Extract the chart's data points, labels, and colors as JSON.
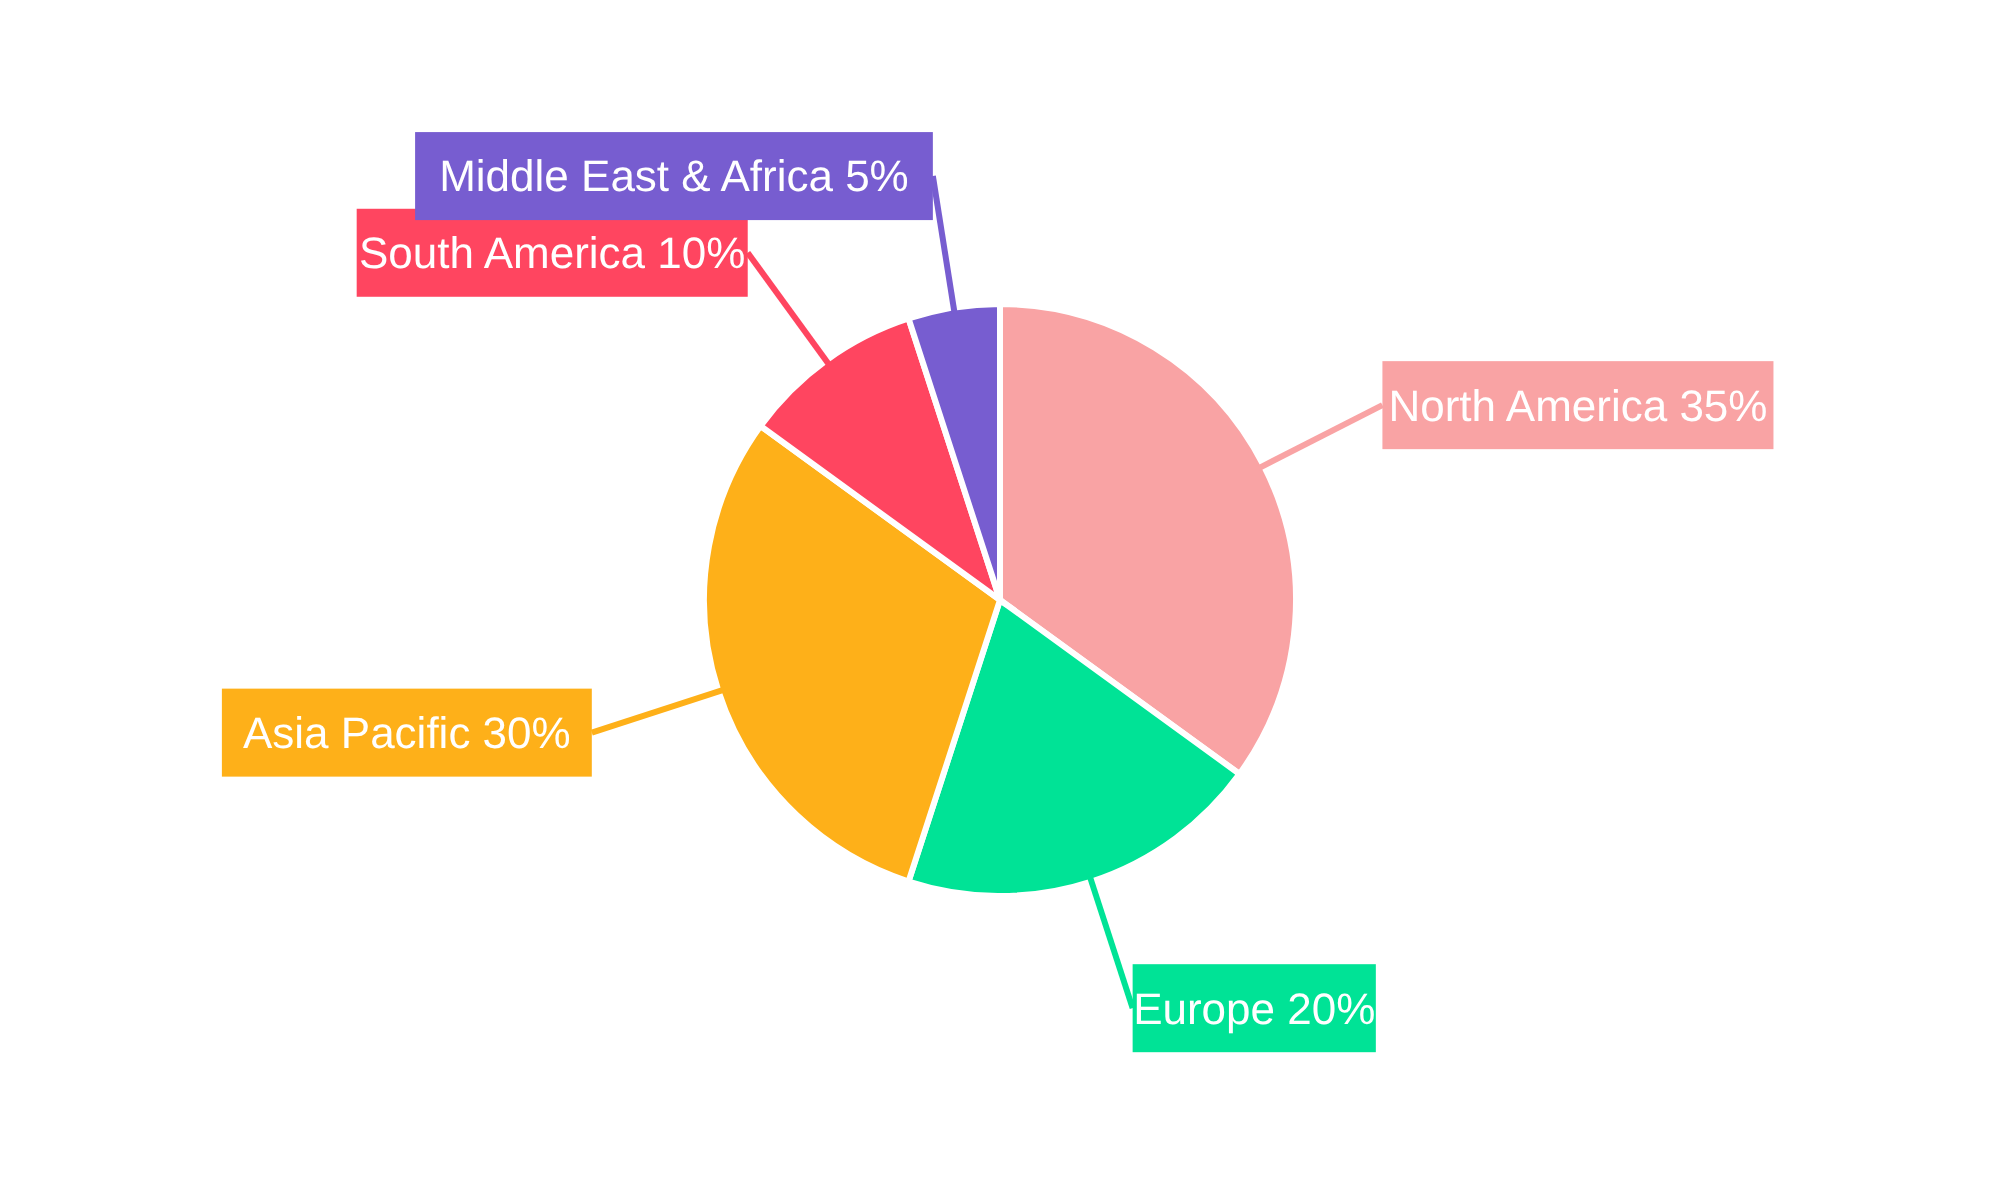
{
  "chart_data": {
    "type": "pie",
    "categories": [
      "North America",
      "Europe",
      "Asia Pacific",
      "South America",
      "Middle East & Africa"
    ],
    "values": [
      35,
      20,
      30,
      10,
      5
    ],
    "colors": [
      "#f9a3a4",
      "#00e396",
      "#feb019",
      "#ff4560",
      "#775dd0"
    ],
    "value_labels": [
      "35%",
      "20%",
      "30%",
      "10%",
      "5%"
    ]
  }
}
